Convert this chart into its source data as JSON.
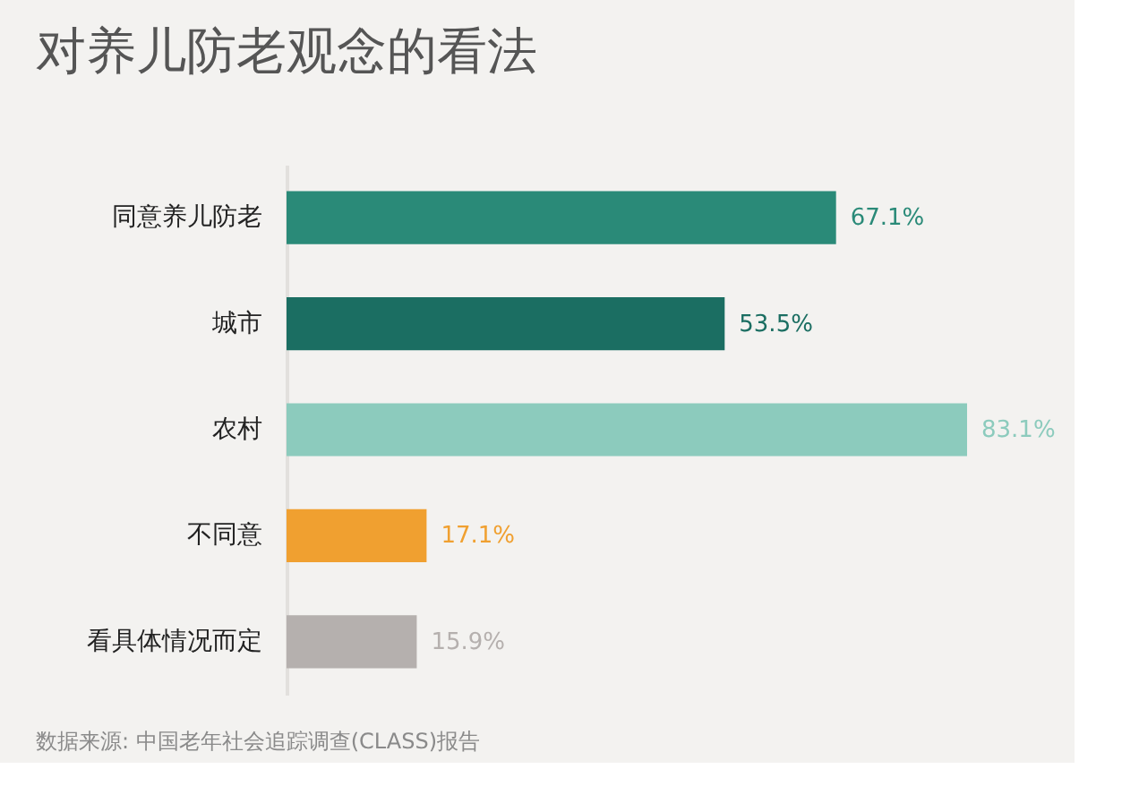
{
  "chart_data": {
    "type": "bar",
    "orientation": "horizontal",
    "title": "对养儿防老观念的看法",
    "categories": [
      "同意养儿防老",
      "城市",
      "农村",
      "不同意",
      "看具体情况而定"
    ],
    "values": [
      67.1,
      53.5,
      83.1,
      17.1,
      15.9
    ],
    "value_labels": [
      "67.1%",
      "53.5%",
      "83.1%",
      "17.1%",
      "15.9%"
    ],
    "colors": [
      "#2a8a78",
      "#1b6e62",
      "#8ccbbd",
      "#f0a030",
      "#b5b0ae"
    ],
    "annotations": [
      "数据来源: 中国老年社会追踪调查(CLASS)报告"
    ]
  }
}
